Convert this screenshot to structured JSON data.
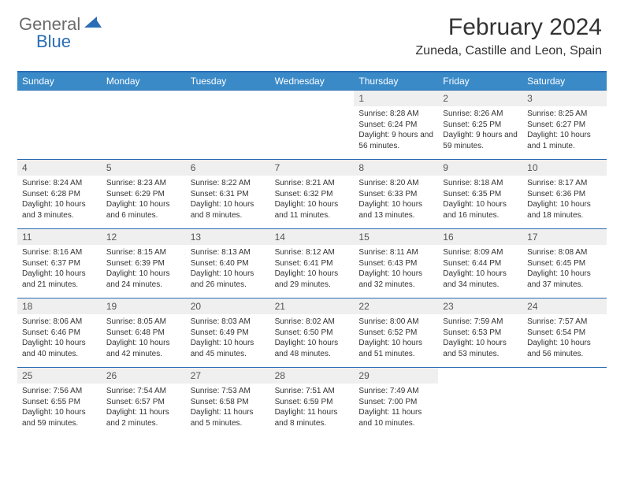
{
  "logo": {
    "text_general": "General",
    "text_blue": "Blue",
    "icon_color": "#2a6db5"
  },
  "header": {
    "month_title": "February 2024",
    "location": "Zuneda, Castille and Leon, Spain"
  },
  "colors": {
    "header_bar": "#3a8ac8",
    "border": "#2a6db5",
    "daynum_bg": "#efefef",
    "text": "#333333"
  },
  "weekdays": [
    "Sunday",
    "Monday",
    "Tuesday",
    "Wednesday",
    "Thursday",
    "Friday",
    "Saturday"
  ],
  "weeks": [
    [
      null,
      null,
      null,
      null,
      {
        "num": "1",
        "sunrise": "Sunrise: 8:28 AM",
        "sunset": "Sunset: 6:24 PM",
        "daylight": "Daylight: 9 hours and 56 minutes."
      },
      {
        "num": "2",
        "sunrise": "Sunrise: 8:26 AM",
        "sunset": "Sunset: 6:25 PM",
        "daylight": "Daylight: 9 hours and 59 minutes."
      },
      {
        "num": "3",
        "sunrise": "Sunrise: 8:25 AM",
        "sunset": "Sunset: 6:27 PM",
        "daylight": "Daylight: 10 hours and 1 minute."
      }
    ],
    [
      {
        "num": "4",
        "sunrise": "Sunrise: 8:24 AM",
        "sunset": "Sunset: 6:28 PM",
        "daylight": "Daylight: 10 hours and 3 minutes."
      },
      {
        "num": "5",
        "sunrise": "Sunrise: 8:23 AM",
        "sunset": "Sunset: 6:29 PM",
        "daylight": "Daylight: 10 hours and 6 minutes."
      },
      {
        "num": "6",
        "sunrise": "Sunrise: 8:22 AM",
        "sunset": "Sunset: 6:31 PM",
        "daylight": "Daylight: 10 hours and 8 minutes."
      },
      {
        "num": "7",
        "sunrise": "Sunrise: 8:21 AM",
        "sunset": "Sunset: 6:32 PM",
        "daylight": "Daylight: 10 hours and 11 minutes."
      },
      {
        "num": "8",
        "sunrise": "Sunrise: 8:20 AM",
        "sunset": "Sunset: 6:33 PM",
        "daylight": "Daylight: 10 hours and 13 minutes."
      },
      {
        "num": "9",
        "sunrise": "Sunrise: 8:18 AM",
        "sunset": "Sunset: 6:35 PM",
        "daylight": "Daylight: 10 hours and 16 minutes."
      },
      {
        "num": "10",
        "sunrise": "Sunrise: 8:17 AM",
        "sunset": "Sunset: 6:36 PM",
        "daylight": "Daylight: 10 hours and 18 minutes."
      }
    ],
    [
      {
        "num": "11",
        "sunrise": "Sunrise: 8:16 AM",
        "sunset": "Sunset: 6:37 PM",
        "daylight": "Daylight: 10 hours and 21 minutes."
      },
      {
        "num": "12",
        "sunrise": "Sunrise: 8:15 AM",
        "sunset": "Sunset: 6:39 PM",
        "daylight": "Daylight: 10 hours and 24 minutes."
      },
      {
        "num": "13",
        "sunrise": "Sunrise: 8:13 AM",
        "sunset": "Sunset: 6:40 PM",
        "daylight": "Daylight: 10 hours and 26 minutes."
      },
      {
        "num": "14",
        "sunrise": "Sunrise: 8:12 AM",
        "sunset": "Sunset: 6:41 PM",
        "daylight": "Daylight: 10 hours and 29 minutes."
      },
      {
        "num": "15",
        "sunrise": "Sunrise: 8:11 AM",
        "sunset": "Sunset: 6:43 PM",
        "daylight": "Daylight: 10 hours and 32 minutes."
      },
      {
        "num": "16",
        "sunrise": "Sunrise: 8:09 AM",
        "sunset": "Sunset: 6:44 PM",
        "daylight": "Daylight: 10 hours and 34 minutes."
      },
      {
        "num": "17",
        "sunrise": "Sunrise: 8:08 AM",
        "sunset": "Sunset: 6:45 PM",
        "daylight": "Daylight: 10 hours and 37 minutes."
      }
    ],
    [
      {
        "num": "18",
        "sunrise": "Sunrise: 8:06 AM",
        "sunset": "Sunset: 6:46 PM",
        "daylight": "Daylight: 10 hours and 40 minutes."
      },
      {
        "num": "19",
        "sunrise": "Sunrise: 8:05 AM",
        "sunset": "Sunset: 6:48 PM",
        "daylight": "Daylight: 10 hours and 42 minutes."
      },
      {
        "num": "20",
        "sunrise": "Sunrise: 8:03 AM",
        "sunset": "Sunset: 6:49 PM",
        "daylight": "Daylight: 10 hours and 45 minutes."
      },
      {
        "num": "21",
        "sunrise": "Sunrise: 8:02 AM",
        "sunset": "Sunset: 6:50 PM",
        "daylight": "Daylight: 10 hours and 48 minutes."
      },
      {
        "num": "22",
        "sunrise": "Sunrise: 8:00 AM",
        "sunset": "Sunset: 6:52 PM",
        "daylight": "Daylight: 10 hours and 51 minutes."
      },
      {
        "num": "23",
        "sunrise": "Sunrise: 7:59 AM",
        "sunset": "Sunset: 6:53 PM",
        "daylight": "Daylight: 10 hours and 53 minutes."
      },
      {
        "num": "24",
        "sunrise": "Sunrise: 7:57 AM",
        "sunset": "Sunset: 6:54 PM",
        "daylight": "Daylight: 10 hours and 56 minutes."
      }
    ],
    [
      {
        "num": "25",
        "sunrise": "Sunrise: 7:56 AM",
        "sunset": "Sunset: 6:55 PM",
        "daylight": "Daylight: 10 hours and 59 minutes."
      },
      {
        "num": "26",
        "sunrise": "Sunrise: 7:54 AM",
        "sunset": "Sunset: 6:57 PM",
        "daylight": "Daylight: 11 hours and 2 minutes."
      },
      {
        "num": "27",
        "sunrise": "Sunrise: 7:53 AM",
        "sunset": "Sunset: 6:58 PM",
        "daylight": "Daylight: 11 hours and 5 minutes."
      },
      {
        "num": "28",
        "sunrise": "Sunrise: 7:51 AM",
        "sunset": "Sunset: 6:59 PM",
        "daylight": "Daylight: 11 hours and 8 minutes."
      },
      {
        "num": "29",
        "sunrise": "Sunrise: 7:49 AM",
        "sunset": "Sunset: 7:00 PM",
        "daylight": "Daylight: 11 hours and 10 minutes."
      },
      null,
      null
    ]
  ]
}
